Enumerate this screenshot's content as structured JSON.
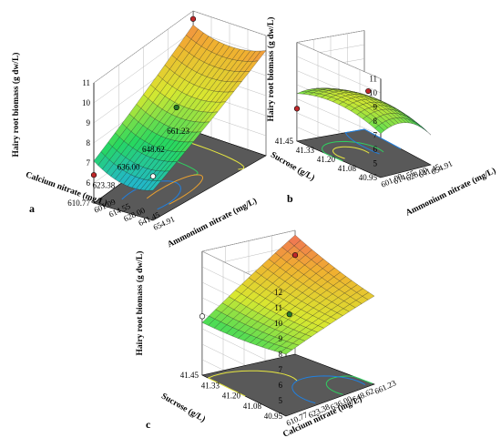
{
  "chart_data": [
    {
      "type": "surface3d",
      "panel_label": "a",
      "x_label": "Ammonium nitrate (mg/L)",
      "x_ticks": [
        "601.09",
        "614.55",
        "628.00",
        "641.45",
        "654.91"
      ],
      "y_label": "Calcium nitrate (mg/L)",
      "y_ticks": [
        "610.77",
        "623.38",
        "636.00",
        "648.62",
        "661.23"
      ],
      "z_label": "Hairy root biomass (g dw/L)",
      "z_ticks": [
        "6",
        "7",
        "8",
        "9",
        "10",
        "11"
      ],
      "zlim": [
        5,
        11
      ],
      "colormap": [
        "#1f3fd0",
        "#21b0e0",
        "#26d860",
        "#d8e830",
        "#f0b030",
        "#f06060"
      ],
      "design_points": [
        {
          "ammonium": 601.09,
          "calcium": 661.23,
          "biomass": 10.6,
          "marker": "red"
        },
        {
          "ammonium": 601.09,
          "calcium": 610.77,
          "biomass": 6.4,
          "marker": "red"
        },
        {
          "ammonium": 628.0,
          "calcium": 636.0,
          "biomass": 8.5,
          "marker": "green"
        },
        {
          "ammonium": 654.91,
          "calcium": 610.77,
          "biomass": 7.2,
          "marker": "white"
        }
      ]
    },
    {
      "type": "surface3d",
      "panel_label": "b",
      "x_label": "Ammonium nitrate (mg/L)",
      "x_ticks": [
        "601.09",
        "614.55",
        "628.00",
        "641.45",
        "654.91"
      ],
      "y_label": "Sucrose (g/L)",
      "y_ticks": [
        "40.95",
        "41.08",
        "41.20",
        "41.33",
        "41.45"
      ],
      "z_label": "Hairy root biomass (g dw/L)",
      "z_ticks": [
        "5",
        "6",
        "7",
        "8",
        "9",
        "10",
        "11"
      ],
      "zlim": [
        4,
        11
      ],
      "colormap": [
        "#1f3fd0",
        "#21b0e0",
        "#26d860",
        "#d8e830",
        "#f0b030",
        "#f06060"
      ],
      "design_points": [
        {
          "ammonium": 628.0,
          "sucrose": 41.2,
          "biomass": 8.4,
          "marker": "red"
        },
        {
          "ammonium": 601.09,
          "sucrose": 41.45,
          "biomass": 6.3,
          "marker": "red"
        }
      ]
    },
    {
      "type": "surface3d",
      "panel_label": "c",
      "x_label": "Calcium nitrate (mg/L)",
      "x_ticks": [
        "610.77",
        "623.38",
        "636.00",
        "648.62",
        "661.23"
      ],
      "y_label": "Sucrose (g/L)",
      "y_ticks": [
        "40.95",
        "41.08",
        "41.20",
        "41.33",
        "41.45"
      ],
      "z_label": "Hairy root biomass (g dw/L)",
      "z_ticks": [
        "5",
        "6",
        "7",
        "8",
        "9",
        "10",
        "11",
        "12"
      ],
      "zlim": [
        4,
        12
      ],
      "colormap": [
        "#1f3fd0",
        "#21b0e0",
        "#26d860",
        "#d8e830",
        "#f0b030",
        "#f06060"
      ],
      "design_points": [
        {
          "calcium": 661.23,
          "sucrose": 41.45,
          "biomass": 10.4,
          "marker": "red"
        },
        {
          "calcium": 636.0,
          "sucrose": 41.2,
          "biomass": 8.4,
          "marker": "green"
        },
        {
          "calcium": 610.77,
          "sucrose": 41.45,
          "biomass": 7.8,
          "marker": "white"
        }
      ]
    }
  ]
}
